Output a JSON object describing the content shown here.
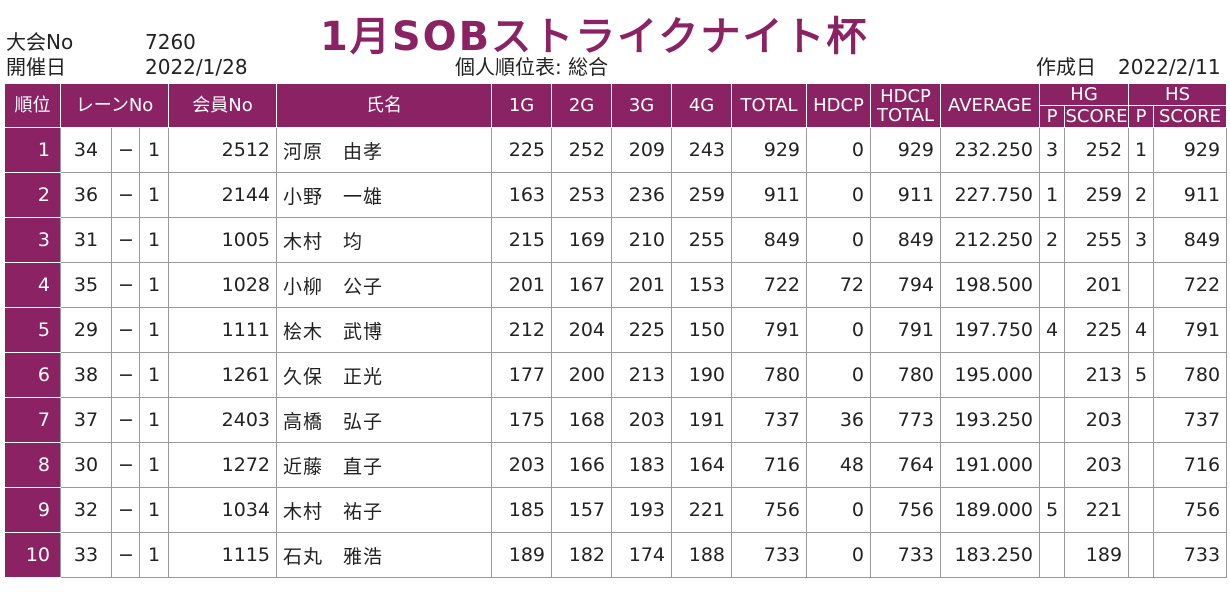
{
  "header": {
    "title": "1月SOBストライクナイト杯",
    "event_no_label": "大会No",
    "event_no": "7260",
    "date_label": "開催日",
    "date": "2022/1/28",
    "report_name": "個人順位表: 総合",
    "created_label": "作成日",
    "created_date": "2022/2/11"
  },
  "columns": {
    "rank": "順位",
    "lane": "レーンNo",
    "member": "会員No",
    "name": "氏名",
    "g1": "1G",
    "g2": "2G",
    "g3": "3G",
    "g4": "4G",
    "total": "TOTAL",
    "hdcp": "HDCP",
    "hdcp_total_1": "HDCP",
    "hdcp_total_2": "TOTAL",
    "average": "AVERAGE",
    "hg": "HG",
    "hs": "HS",
    "hg_p": "P",
    "hg_score": "SCORE",
    "hs_p": "P",
    "hs_score": "SCORE"
  },
  "rows": [
    {
      "rank": "1",
      "lane": "34",
      "dash": "−",
      "lane_sub": "1",
      "member": "2512",
      "name": "河原　由孝",
      "g1": "225",
      "g2": "252",
      "g3": "209",
      "g4": "243",
      "total": "929",
      "hdcp": "0",
      "hdcp_total": "929",
      "average": "232.250",
      "hg_p": "3",
      "hg_score": "252",
      "hs_p": "1",
      "hs_score": "929"
    },
    {
      "rank": "2",
      "lane": "36",
      "dash": "−",
      "lane_sub": "1",
      "member": "2144",
      "name": "小野　一雄",
      "g1": "163",
      "g2": "253",
      "g3": "236",
      "g4": "259",
      "total": "911",
      "hdcp": "0",
      "hdcp_total": "911",
      "average": "227.750",
      "hg_p": "1",
      "hg_score": "259",
      "hs_p": "2",
      "hs_score": "911"
    },
    {
      "rank": "3",
      "lane": "31",
      "dash": "−",
      "lane_sub": "1",
      "member": "1005",
      "name": "木村　均",
      "g1": "215",
      "g2": "169",
      "g3": "210",
      "g4": "255",
      "total": "849",
      "hdcp": "0",
      "hdcp_total": "849",
      "average": "212.250",
      "hg_p": "2",
      "hg_score": "255",
      "hs_p": "3",
      "hs_score": "849"
    },
    {
      "rank": "4",
      "lane": "35",
      "dash": "−",
      "lane_sub": "1",
      "member": "1028",
      "name": "小柳　公子",
      "g1": "201",
      "g2": "167",
      "g3": "201",
      "g4": "153",
      "total": "722",
      "hdcp": "72",
      "hdcp_total": "794",
      "average": "198.500",
      "hg_p": "",
      "hg_score": "201",
      "hs_p": "",
      "hs_score": "722"
    },
    {
      "rank": "5",
      "lane": "29",
      "dash": "−",
      "lane_sub": "1",
      "member": "1111",
      "name": "桧木　武博",
      "g1": "212",
      "g2": "204",
      "g3": "225",
      "g4": "150",
      "total": "791",
      "hdcp": "0",
      "hdcp_total": "791",
      "average": "197.750",
      "hg_p": "4",
      "hg_score": "225",
      "hs_p": "4",
      "hs_score": "791"
    },
    {
      "rank": "6",
      "lane": "38",
      "dash": "−",
      "lane_sub": "1",
      "member": "1261",
      "name": "久保　正光",
      "g1": "177",
      "g2": "200",
      "g3": "213",
      "g4": "190",
      "total": "780",
      "hdcp": "0",
      "hdcp_total": "780",
      "average": "195.000",
      "hg_p": "",
      "hg_score": "213",
      "hs_p": "5",
      "hs_score": "780"
    },
    {
      "rank": "7",
      "lane": "37",
      "dash": "−",
      "lane_sub": "1",
      "member": "2403",
      "name": "高橋　弘子",
      "g1": "175",
      "g2": "168",
      "g3": "203",
      "g4": "191",
      "total": "737",
      "hdcp": "36",
      "hdcp_total": "773",
      "average": "193.250",
      "hg_p": "",
      "hg_score": "203",
      "hs_p": "",
      "hs_score": "737"
    },
    {
      "rank": "8",
      "lane": "30",
      "dash": "−",
      "lane_sub": "1",
      "member": "1272",
      "name": "近藤　直子",
      "g1": "203",
      "g2": "166",
      "g3": "183",
      "g4": "164",
      "total": "716",
      "hdcp": "48",
      "hdcp_total": "764",
      "average": "191.000",
      "hg_p": "",
      "hg_score": "203",
      "hs_p": "",
      "hs_score": "716"
    },
    {
      "rank": "9",
      "lane": "32",
      "dash": "−",
      "lane_sub": "1",
      "member": "1034",
      "name": "木村　祐子",
      "g1": "185",
      "g2": "157",
      "g3": "193",
      "g4": "221",
      "total": "756",
      "hdcp": "0",
      "hdcp_total": "756",
      "average": "189.000",
      "hg_p": "5",
      "hg_score": "221",
      "hs_p": "",
      "hs_score": "756"
    },
    {
      "rank": "10",
      "lane": "33",
      "dash": "−",
      "lane_sub": "1",
      "member": "1115",
      "name": "石丸　雅浩",
      "g1": "189",
      "g2": "182",
      "g3": "174",
      "g4": "188",
      "total": "733",
      "hdcp": "0",
      "hdcp_total": "733",
      "average": "183.250",
      "hg_p": "",
      "hg_score": "189",
      "hs_p": "",
      "hs_score": "733"
    }
  ]
}
